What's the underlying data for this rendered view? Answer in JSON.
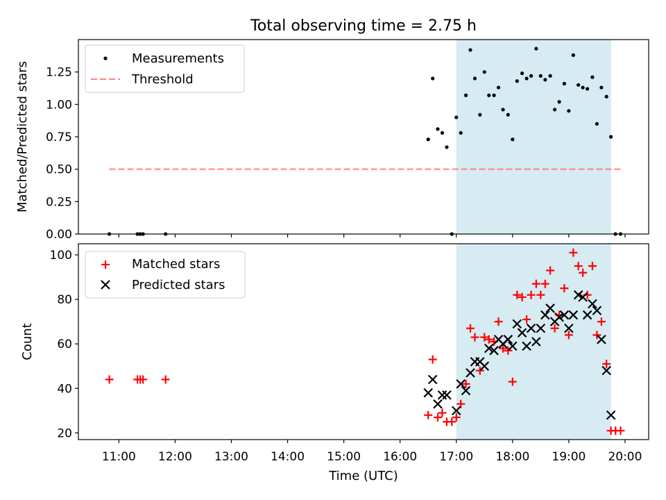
{
  "chart_data": {
    "type": "scatter",
    "title": "Total observing time = 2.75 h",
    "shaded_interval": {
      "start": 17.0,
      "end": 19.75,
      "color": "#add8e6"
    },
    "x_axis": {
      "label": "Time (UTC)",
      "lim": [
        10.28,
        20.42
      ],
      "ticks": [
        11,
        12,
        13,
        14,
        15,
        16,
        17,
        18,
        19,
        20
      ],
      "tick_labels": [
        "11:00",
        "12:00",
        "13:00",
        "14:00",
        "15:00",
        "16:00",
        "17:00",
        "18:00",
        "19:00",
        "20:00"
      ]
    },
    "top": {
      "ylabel": "Matched/Predicted stars",
      "ylim": [
        0,
        1.5
      ],
      "yticks": [
        0,
        0.25,
        0.5,
        0.75,
        1.0,
        1.25
      ],
      "ytick_labels": [
        "0.00",
        "0.25",
        "0.50",
        "0.75",
        "1.00",
        "1.25"
      ],
      "legend": {
        "measurements": "Measurements",
        "threshold": "Threshold"
      },
      "threshold": {
        "value": 0.5,
        "x_start": 10.83,
        "x_end": 19.92,
        "color": "#ff8080"
      },
      "measurements": [
        [
          10.83,
          0.0
        ],
        [
          11.33,
          0.0
        ],
        [
          11.38,
          0.0
        ],
        [
          11.43,
          0.0
        ],
        [
          11.83,
          0.0
        ],
        [
          16.5,
          0.73
        ],
        [
          16.58,
          1.2
        ],
        [
          16.67,
          0.81
        ],
        [
          16.75,
          0.78
        ],
        [
          16.83,
          0.67
        ],
        [
          16.92,
          0.0
        ],
        [
          17.0,
          0.9
        ],
        [
          17.08,
          0.78
        ],
        [
          17.17,
          1.07
        ],
        [
          17.25,
          1.42
        ],
        [
          17.33,
          1.2
        ],
        [
          17.42,
          0.92
        ],
        [
          17.5,
          1.25
        ],
        [
          17.58,
          1.07
        ],
        [
          17.67,
          1.07
        ],
        [
          17.75,
          1.13
        ],
        [
          17.83,
          0.96
        ],
        [
          17.92,
          0.92
        ],
        [
          18.0,
          0.73
        ],
        [
          18.08,
          1.18
        ],
        [
          18.17,
          1.24
        ],
        [
          18.25,
          1.2
        ],
        [
          18.33,
          1.22
        ],
        [
          18.42,
          1.43
        ],
        [
          18.5,
          1.22
        ],
        [
          18.58,
          1.19
        ],
        [
          18.67,
          1.22
        ],
        [
          18.75,
          0.96
        ],
        [
          18.83,
          1.02
        ],
        [
          18.92,
          1.16
        ],
        [
          19.0,
          0.95
        ],
        [
          19.08,
          1.38
        ],
        [
          19.17,
          1.15
        ],
        [
          19.25,
          1.13
        ],
        [
          19.33,
          1.12
        ],
        [
          19.42,
          1.21
        ],
        [
          19.5,
          0.85
        ],
        [
          19.58,
          1.13
        ],
        [
          19.67,
          1.06
        ],
        [
          19.75,
          0.75
        ],
        [
          19.83,
          0.0
        ],
        [
          19.92,
          0.0
        ]
      ]
    },
    "bottom": {
      "ylabel": "Count",
      "ylim": [
        17,
        105
      ],
      "yticks": [
        20,
        40,
        60,
        80,
        100
      ],
      "ytick_labels": [
        "20",
        "40",
        "60",
        "80",
        "100"
      ],
      "legend": {
        "matched": "Matched stars",
        "predicted": "Predicted stars"
      },
      "matched": [
        [
          10.83,
          44
        ],
        [
          11.33,
          44
        ],
        [
          11.38,
          44
        ],
        [
          11.43,
          44
        ],
        [
          11.83,
          44
        ],
        [
          16.5,
          28
        ],
        [
          16.58,
          53
        ],
        [
          16.67,
          27
        ],
        [
          16.75,
          29
        ],
        [
          16.83,
          25
        ],
        [
          16.92,
          25
        ],
        [
          17.0,
          27
        ],
        [
          17.08,
          33
        ],
        [
          17.17,
          42
        ],
        [
          17.25,
          67
        ],
        [
          17.33,
          63
        ],
        [
          17.42,
          48
        ],
        [
          17.5,
          63
        ],
        [
          17.58,
          62
        ],
        [
          17.67,
          61
        ],
        [
          17.75,
          70
        ],
        [
          17.83,
          58
        ],
        [
          17.92,
          57
        ],
        [
          18.0,
          43
        ],
        [
          18.08,
          82
        ],
        [
          18.17,
          81
        ],
        [
          18.25,
          71
        ],
        [
          18.33,
          82
        ],
        [
          18.42,
          87
        ],
        [
          18.5,
          82
        ],
        [
          18.58,
          87
        ],
        [
          18.67,
          93
        ],
        [
          18.75,
          67
        ],
        [
          18.83,
          73
        ],
        [
          18.92,
          85
        ],
        [
          19.0,
          64
        ],
        [
          19.08,
          101
        ],
        [
          19.17,
          95
        ],
        [
          19.25,
          92
        ],
        [
          19.33,
          82
        ],
        [
          19.42,
          95
        ],
        [
          19.5,
          64
        ],
        [
          19.58,
          70
        ],
        [
          19.67,
          51
        ],
        [
          19.75,
          21
        ],
        [
          19.83,
          21
        ],
        [
          19.92,
          21
        ]
      ],
      "predicted": [
        [
          16.5,
          38
        ],
        [
          16.58,
          44
        ],
        [
          16.67,
          33
        ],
        [
          16.75,
          37
        ],
        [
          16.83,
          37
        ],
        [
          17.0,
          30
        ],
        [
          17.08,
          42
        ],
        [
          17.17,
          39
        ],
        [
          17.25,
          47
        ],
        [
          17.33,
          52
        ],
        [
          17.42,
          52
        ],
        [
          17.5,
          50
        ],
        [
          17.58,
          58
        ],
        [
          17.67,
          57
        ],
        [
          17.75,
          62
        ],
        [
          17.83,
          60
        ],
        [
          17.92,
          62
        ],
        [
          18.0,
          59
        ],
        [
          18.08,
          69
        ],
        [
          18.17,
          65
        ],
        [
          18.25,
          59
        ],
        [
          18.33,
          67
        ],
        [
          18.42,
          61
        ],
        [
          18.5,
          67
        ],
        [
          18.58,
          73
        ],
        [
          18.67,
          76
        ],
        [
          18.75,
          70
        ],
        [
          18.83,
          72
        ],
        [
          18.92,
          73
        ],
        [
          19.0,
          67
        ],
        [
          19.08,
          73
        ],
        [
          19.17,
          82
        ],
        [
          19.25,
          81
        ],
        [
          19.33,
          73
        ],
        [
          19.42,
          78
        ],
        [
          19.5,
          75
        ],
        [
          19.58,
          62
        ],
        [
          19.67,
          48
        ],
        [
          19.75,
          28
        ]
      ]
    }
  }
}
